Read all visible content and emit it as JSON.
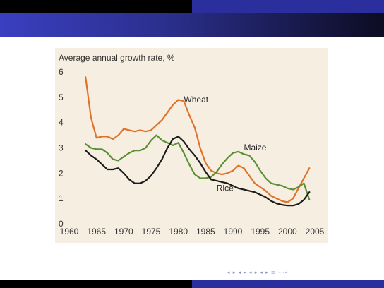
{
  "slide": {
    "colors": {
      "top_bar_left": "#000000",
      "top_bar_right": "#2b2f9e",
      "title_band_start": "#3a3fc0",
      "title_band_end": "#0c0c22",
      "panel_background": "#f6efe1"
    },
    "navigation_symbols": "◂ ▸ ◂ ▸ ◂ ▸ ◂ ▸ ≡ ∽∾"
  },
  "chart_data": {
    "type": "line",
    "title": "Average annual growth rate, %",
    "xlabel": "",
    "ylabel": "",
    "xlim": [
      1960,
      2005
    ],
    "ylim": [
      0,
      6
    ],
    "x_ticks": [
      "1960",
      "1965",
      "1970",
      "1975",
      "1980",
      "1985",
      "1990",
      "1995",
      "2000",
      "2005"
    ],
    "y_ticks": [
      "0",
      "1",
      "2",
      "3",
      "4",
      "5",
      "6"
    ],
    "grid": false,
    "legend": "inline labels",
    "series": [
      {
        "name": "Wheat",
        "color": "#e2722a",
        "label_at": [
          1981,
          4.8
        ],
        "x": [
          1963,
          1964,
          1965,
          1966,
          1967,
          1968,
          1969,
          1970,
          1971,
          1972,
          1973,
          1974,
          1975,
          1976,
          1977,
          1978,
          1979,
          1980,
          1981,
          1982,
          1983,
          1984,
          1985,
          1986,
          1987,
          1988,
          1989,
          1990,
          1991,
          1992,
          1993,
          1994,
          1995,
          1996,
          1997,
          1998,
          1999,
          2000,
          2001,
          2002,
          2003,
          2004
        ],
        "y": [
          5.8,
          4.2,
          3.4,
          3.45,
          3.45,
          3.35,
          3.5,
          3.75,
          3.7,
          3.65,
          3.7,
          3.65,
          3.7,
          3.9,
          4.1,
          4.4,
          4.7,
          4.9,
          4.85,
          4.3,
          3.8,
          3.0,
          2.4,
          2.1,
          2.0,
          1.95,
          2.0,
          2.1,
          2.3,
          2.2,
          1.9,
          1.6,
          1.45,
          1.3,
          1.1,
          1.0,
          0.9,
          0.85,
          1.0,
          1.4,
          1.8,
          2.2
        ]
      },
      {
        "name": "Maize",
        "color": "#5a8f34",
        "label_at": [
          1992,
          2.9
        ],
        "x": [
          1963,
          1964,
          1965,
          1966,
          1967,
          1968,
          1969,
          1970,
          1971,
          1972,
          1973,
          1974,
          1975,
          1976,
          1977,
          1978,
          1979,
          1980,
          1981,
          1982,
          1983,
          1984,
          1985,
          1986,
          1987,
          1988,
          1989,
          1990,
          1991,
          1992,
          1993,
          1994,
          1995,
          1996,
          1997,
          1998,
          1999,
          2000,
          2001,
          2002,
          2003,
          2004
        ],
        "y": [
          3.15,
          3.0,
          2.95,
          2.95,
          2.8,
          2.55,
          2.5,
          2.65,
          2.8,
          2.9,
          2.9,
          3.0,
          3.3,
          3.5,
          3.3,
          3.2,
          3.1,
          3.2,
          2.8,
          2.35,
          1.95,
          1.8,
          1.8,
          1.85,
          2.05,
          2.35,
          2.6,
          2.8,
          2.85,
          2.75,
          2.7,
          2.45,
          2.1,
          1.8,
          1.6,
          1.55,
          1.5,
          1.4,
          1.35,
          1.45,
          1.6,
          0.95
        ]
      },
      {
        "name": "Rice",
        "color": "#1c1c1c",
        "label_at": [
          1987,
          1.3
        ],
        "x": [
          1963,
          1964,
          1965,
          1966,
          1967,
          1968,
          1969,
          1970,
          1971,
          1972,
          1973,
          1974,
          1975,
          1976,
          1977,
          1978,
          1979,
          1980,
          1981,
          1982,
          1983,
          1984,
          1985,
          1986,
          1987,
          1988,
          1989,
          1990,
          1991,
          1992,
          1993,
          1994,
          1995,
          1996,
          1997,
          1998,
          1999,
          2000,
          2001,
          2002,
          2003,
          2004
        ],
        "y": [
          2.9,
          2.7,
          2.55,
          2.35,
          2.15,
          2.15,
          2.2,
          2.0,
          1.75,
          1.6,
          1.6,
          1.7,
          1.9,
          2.2,
          2.55,
          3.0,
          3.35,
          3.45,
          3.25,
          2.95,
          2.7,
          2.4,
          2.05,
          1.75,
          1.7,
          1.65,
          1.6,
          1.5,
          1.4,
          1.35,
          1.3,
          1.25,
          1.15,
          1.05,
          0.9,
          0.8,
          0.75,
          0.72,
          0.72,
          0.78,
          0.95,
          1.25
        ]
      }
    ]
  }
}
